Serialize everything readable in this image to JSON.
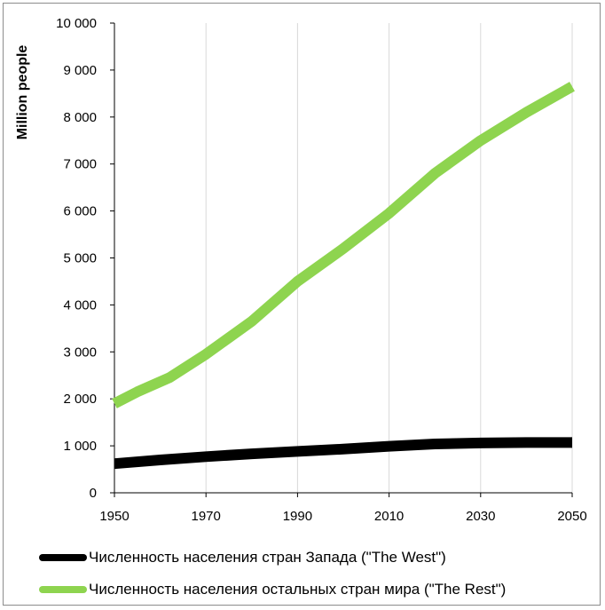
{
  "chart_data": {
    "type": "line",
    "ylabel": "Million people",
    "xlabel": "",
    "xlim": [
      1950,
      2050
    ],
    "ylim": [
      0,
      10000
    ],
    "x_ticks": [
      1950,
      1970,
      1990,
      2010,
      2030,
      2050
    ],
    "y_ticks": [
      0,
      1000,
      2000,
      3000,
      4000,
      5000,
      6000,
      7000,
      8000,
      9000,
      10000
    ],
    "y_tick_labels": [
      "0",
      "1 000",
      "2 000",
      "3 000",
      "4 000",
      "5 000",
      "6 000",
      "7 000",
      "8 000",
      "9 000",
      "10 000"
    ],
    "grid": "vertical",
    "legend_position": "bottom",
    "series": [
      {
        "name": "Численность населения стран Запада (\"The West\")",
        "color": "#000000",
        "x": [
          1950,
          1960,
          1970,
          1980,
          1990,
          2000,
          2010,
          2020,
          2030,
          2040,
          2050
        ],
        "values": [
          620,
          700,
          770,
          830,
          880,
          930,
          990,
          1040,
          1060,
          1070,
          1070
        ]
      },
      {
        "name": "Численность населения остальных стран мира (\"The Rest\")",
        "color": "#8ed44f",
        "x": [
          1950,
          1955,
          1962,
          1970,
          1980,
          1990,
          2000,
          2010,
          2020,
          2030,
          2040,
          2050
        ],
        "values": [
          1900,
          2150,
          2450,
          2950,
          3650,
          4500,
          5200,
          5950,
          6800,
          7500,
          8100,
          8650
        ]
      }
    ]
  }
}
